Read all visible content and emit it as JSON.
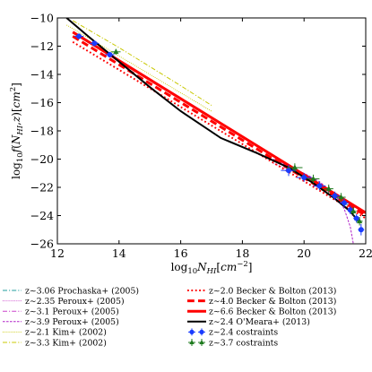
{
  "chart_data": {
    "type": "line",
    "xlabel": "log₁₀Nₕᵢ[cm⁻²]",
    "ylabel": "log₁₀f(Nₕᵢ,z)[cm²]",
    "xlim": [
      12,
      22
    ],
    "ylim": [
      -26,
      -10
    ],
    "x_ticks": [
      "12",
      "14",
      "16",
      "18",
      "20",
      "22"
    ],
    "y_ticks": [
      "−10",
      "−12",
      "−14",
      "−16",
      "−18",
      "−20",
      "−22",
      "−24",
      "−26"
    ],
    "x_tick_values": [
      12,
      14,
      16,
      18,
      20,
      22
    ],
    "y_tick_values": [
      -10,
      -12,
      -14,
      -16,
      -18,
      -20,
      -22,
      -24,
      -26
    ],
    "grid": false,
    "legend_position": "below plot, two columns",
    "series": [
      {
        "name": "z∼3.06 Prochaska+ (2005)",
        "color": "#1f9e9e",
        "dash": "dashdot",
        "width": 1,
        "x": [
          19.3,
          20.3,
          21.5
        ],
        "y": [
          -20.4,
          -21.5,
          -23.4
        ]
      },
      {
        "name": "z∼2.35 Peroux+ (2005)",
        "color": "#cc44cc",
        "dash": "dotted",
        "width": 1,
        "x": [
          19.0,
          20.0,
          21.0,
          21.8
        ],
        "y": [
          -20.3,
          -21.2,
          -22.6,
          -24.4
        ]
      },
      {
        "name": "z∼3.1 Peroux+ (2005)",
        "color": "#cc44cc",
        "dash": "dashdot",
        "width": 1,
        "x": [
          19.0,
          20.0,
          21.0,
          21.8
        ],
        "y": [
          -20.1,
          -21.0,
          -22.5,
          -24.6
        ]
      },
      {
        "name": "z∼3.9 Peroux+ (2005)",
        "color": "#b022c8",
        "dash": "dashed",
        "width": 1,
        "x": [
          19.0,
          20.0,
          20.5,
          21.0,
          21.3,
          21.5,
          21.6
        ],
        "y": [
          -20.0,
          -21.0,
          -21.6,
          -22.5,
          -23.5,
          -24.8,
          -26.0
        ]
      },
      {
        "name": "z∼2.1 Kim+ (2002)",
        "color": "#c8c800",
        "dash": "dotted",
        "width": 1,
        "x": [
          12.3,
          14.0,
          16.0,
          17.0
        ],
        "y": [
          -10.5,
          -12.7,
          -15.3,
          -16.6
        ]
      },
      {
        "name": "z∼3.3 Kim+ (2002)",
        "color": "#c8c800",
        "dash": "dashdot",
        "width": 1,
        "x": [
          12.5,
          14.0,
          16.0,
          17.0
        ],
        "y": [
          -10.2,
          -12.1,
          -14.8,
          -16.2
        ]
      },
      {
        "name": "z∼2.0 Becker & Bolton (2013)",
        "color": "#ff0000",
        "dash": "dotted",
        "width": 2,
        "x": [
          12.5,
          22.0
        ],
        "y": [
          -11.7,
          -24.2
        ]
      },
      {
        "name": "z∼4.0 Becker & Bolton (2013)",
        "color": "#ff0000",
        "dash": "dashed",
        "width": 3,
        "x": [
          12.5,
          22.0
        ],
        "y": [
          -11.3,
          -24.0
        ]
      },
      {
        "name": "z∼6.6 Becker & Bolton (2013)",
        "color": "#ff0000",
        "dash": "solid",
        "width": 3,
        "x": [
          12.5,
          22.0
        ],
        "y": [
          -11.0,
          -23.8
        ]
      },
      {
        "name": "z∼2.4 O'Meara+ (2013)",
        "color": "#000000",
        "dash": "solid",
        "width": 2,
        "x": [
          12.3,
          13.0,
          14.0,
          15.0,
          16.0,
          17.3,
          18.5,
          19.5,
          20.3,
          21.0,
          21.5,
          21.8
        ],
        "y": [
          -10.0,
          -11.3,
          -13.1,
          -14.9,
          -16.6,
          -18.5,
          -19.6,
          -20.6,
          -21.7,
          -22.8,
          -23.7,
          -24.5
        ]
      }
    ],
    "points": [
      {
        "name": "z∼2.4 costraints",
        "color": "#1a3cff",
        "marker": "circle",
        "x": [
          12.7,
          13.2,
          13.7,
          19.5,
          20.0,
          20.5,
          21.0,
          21.3,
          21.5,
          21.7,
          21.85
        ],
        "y": [
          -11.3,
          -11.8,
          -12.6,
          -20.8,
          -21.3,
          -21.9,
          -22.6,
          -23.1,
          -23.6,
          -24.2,
          -25.0
        ],
        "xerr": [
          0.15,
          0.15,
          0.15,
          0.25,
          0.25,
          0.2,
          0.15,
          0.15,
          0.1,
          0.1,
          0.1
        ],
        "yerr": [
          0.2,
          0.2,
          0.2,
          0.4,
          0.3,
          0.3,
          0.3,
          0.3,
          0.3,
          0.3,
          0.4
        ]
      },
      {
        "name": "z∼3.7 costraints",
        "color": "#1e7a1e",
        "marker": "triangle",
        "x": [
          13.9,
          19.7,
          20.3,
          20.8,
          21.2,
          21.6,
          21.8
        ],
        "y": [
          -12.4,
          -20.6,
          -21.4,
          -22.1,
          -22.7,
          -23.7,
          -24.4
        ],
        "xerr": [
          0.15,
          0.25,
          0.2,
          0.15,
          0.15,
          0.1,
          0.1
        ],
        "yerr": [
          0.2,
          0.3,
          0.3,
          0.3,
          0.3,
          0.3,
          0.3
        ]
      }
    ]
  }
}
